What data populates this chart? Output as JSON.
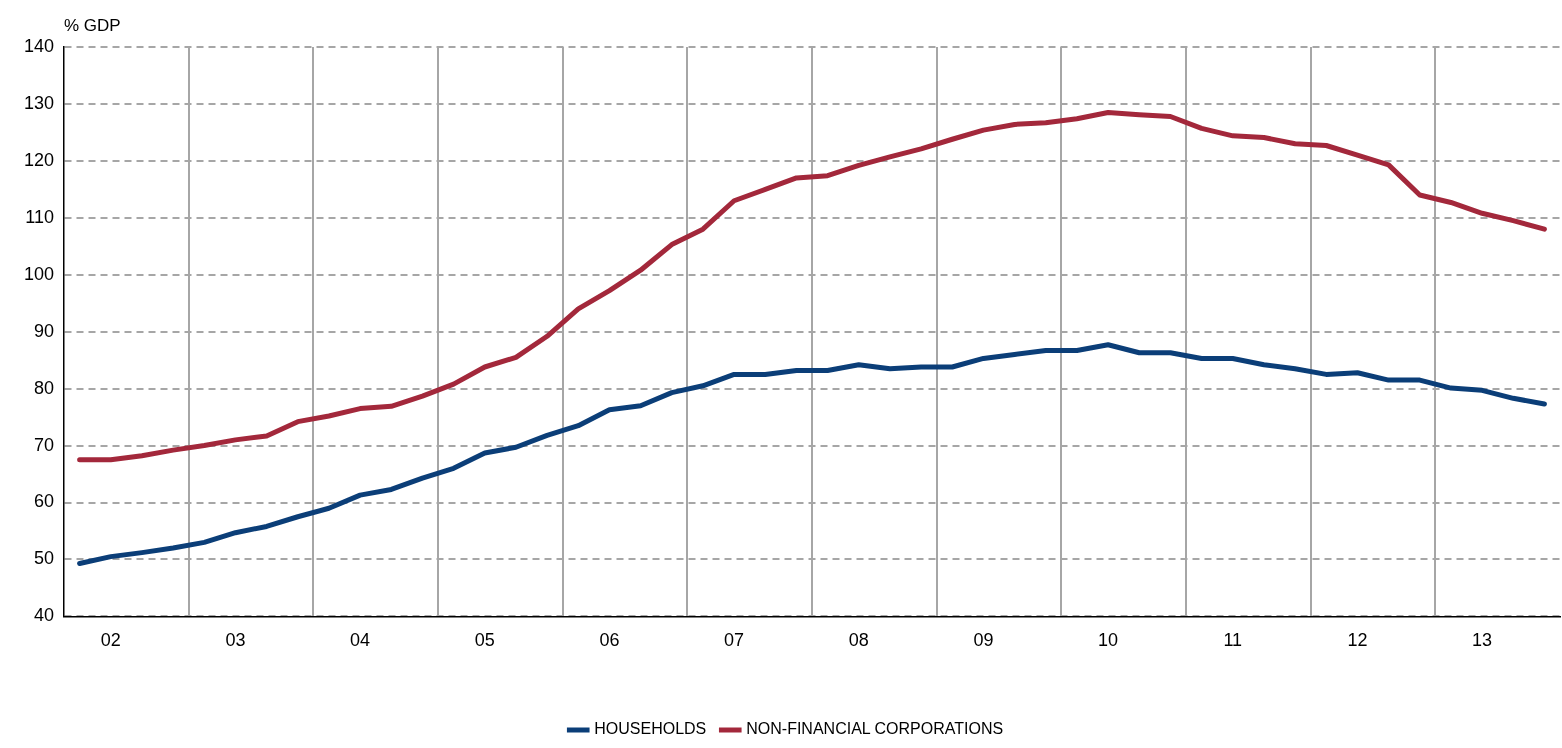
{
  "chart_data": {
    "type": "line",
    "ylabel": "% GDP",
    "categories": [
      null,
      "02",
      null,
      null,
      null,
      "03",
      null,
      null,
      null,
      "04",
      null,
      null,
      null,
      "05",
      null,
      null,
      null,
      "06",
      null,
      null,
      null,
      "07",
      null,
      null,
      null,
      "08",
      null,
      null,
      null,
      "09",
      null,
      null,
      null,
      "10",
      null,
      null,
      null,
      "11",
      null,
      null,
      null,
      "12",
      null,
      null,
      null,
      "13",
      null,
      null
    ],
    "ylim": [
      40,
      140
    ],
    "yticks": [
      40,
      50,
      60,
      70,
      80,
      90,
      100,
      110,
      120,
      130,
      140
    ],
    "grid": true,
    "legend": "bottom",
    "marker": "none",
    "line_style": "solid",
    "series": [
      {
        "name": "HOUSEHOLDS",
        "color": "#0b3e78",
        "values": [
          49.3,
          50.5,
          51.2,
          52,
          53,
          54.7,
          55.8,
          57.5,
          59,
          61.3,
          62.3,
          64.3,
          66,
          68.7,
          69.7,
          71.8,
          73.5,
          76.3,
          77,
          79.3,
          80.5,
          82.5,
          82.5,
          83.2,
          83.2,
          84.2,
          83.5,
          83.8,
          83.8,
          85.3,
          86,
          86.7,
          86.7,
          87.7,
          86.3,
          86.3,
          85.3,
          85.3,
          84.2,
          83.5,
          82.5,
          82.8,
          81.5,
          81.5,
          80.1,
          79.7,
          78.3,
          77.3
        ]
      },
      {
        "name": "NON-FINANCIAL CORPORATIONS",
        "color": "#a3283b",
        "values": [
          67.5,
          67.5,
          68.2,
          69.2,
          70,
          71,
          71.7,
          74.2,
          75.2,
          76.5,
          76.9,
          78.7,
          80.8,
          83.8,
          85.5,
          89.2,
          94,
          97.2,
          100.8,
          105.3,
          108,
          113,
          115,
          117,
          117.4,
          119.2,
          120.7,
          122.1,
          123.8,
          125.4,
          126.4,
          126.7,
          127.4,
          128.5,
          128.1,
          127.8,
          125.7,
          124.4,
          124.1,
          123,
          122.7,
          121,
          119.3,
          114,
          112.7,
          110.8,
          109.5,
          108
        ]
      }
    ]
  }
}
